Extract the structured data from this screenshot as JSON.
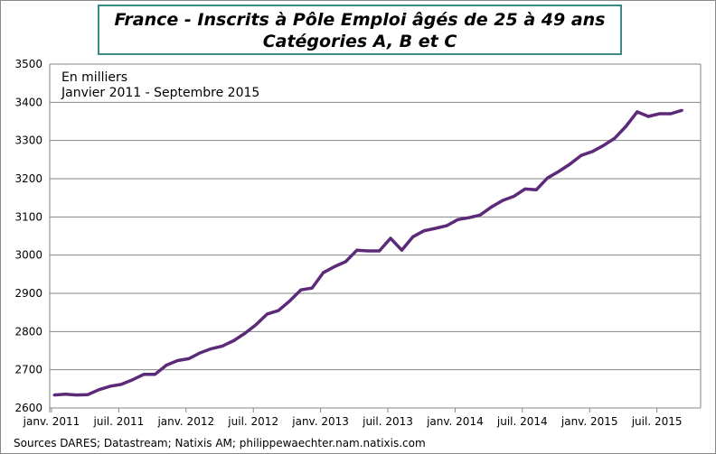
{
  "chart_data": {
    "type": "line",
    "title": "France - Inscrits à Pôle Emploi âgés de 25 à 49 ans",
    "subtitle": "Catégories A, B et C",
    "annotations": [
      "En milliers",
      "Janvier 2011 - Septembre 2015"
    ],
    "source": "Sources DARES; Datastream; Natixis AM; philippewaechter.nam.natixis.com",
    "ylim": [
      2600,
      3500
    ],
    "yticks": [
      2600,
      2700,
      2800,
      2900,
      3000,
      3100,
      3200,
      3300,
      3400,
      3500
    ],
    "xtick_labels": [
      "janv. 2011",
      "juil. 2011",
      "janv. 2012",
      "juil. 2012",
      "janv. 2013",
      "juil. 2013",
      "janv. 2014",
      "juil. 2014",
      "janv. 2015",
      "juil. 2015"
    ],
    "grid": true,
    "line_color": "#5c2a78",
    "series": [
      {
        "start": "2011-01",
        "values": [
          2634,
          2636,
          2634,
          2635,
          2648,
          2657,
          2662,
          2674,
          2688,
          2688,
          2712,
          2724,
          2729,
          2744,
          2755,
          2762,
          2776,
          2795,
          2818,
          2846,
          2855,
          2880,
          2909,
          2914,
          2954,
          2970,
          2983,
          3013,
          3011,
          3011,
          3044,
          3013,
          3048,
          3064,
          3070,
          3077,
          3093,
          3098,
          3105,
          3126,
          3143,
          3154,
          3173,
          3171,
          3202,
          3219,
          3238,
          3261,
          3271,
          3287,
          3306,
          3337,
          3375,
          3363,
          3370,
          3370,
          3379
        ]
      }
    ]
  }
}
